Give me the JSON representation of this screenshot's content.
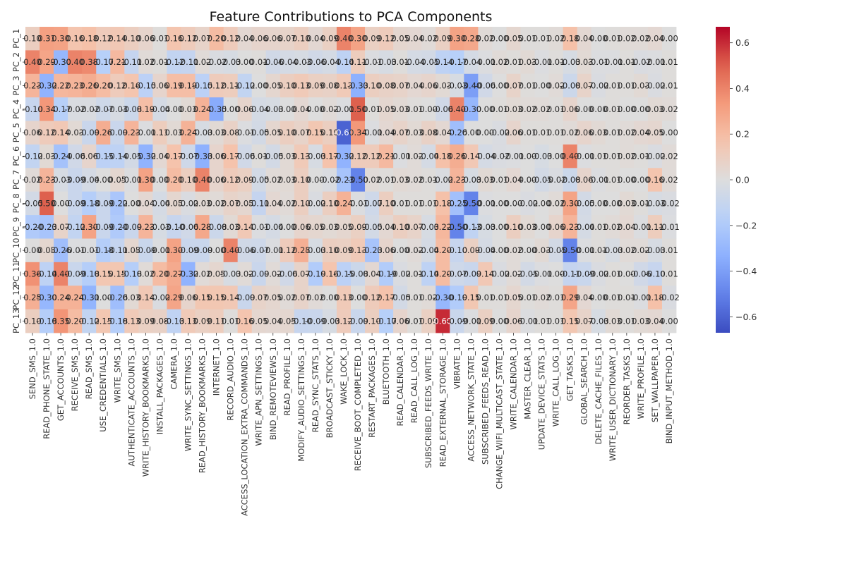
{
  "chart_data": {
    "type": "heatmap",
    "title": "Feature Contributions to PCA Components",
    "colormap": "coolwarm",
    "vmin": -0.67,
    "vmax": 0.67,
    "colorbar_ticks": [
      -0.6,
      -0.4,
      -0.2,
      0.0,
      0.2,
      0.4,
      0.6
    ],
    "colorbar_tick_labels": [
      "−0.6",
      "−0.4",
      "−0.2",
      "0.0",
      "0.2",
      "0.4",
      "0.6"
    ],
    "rows": [
      "PC_1",
      "PC_2",
      "PC_3",
      "PC_4",
      "PC_5",
      "PC_6",
      "PC_7",
      "PC_8",
      "PC_9",
      "PC_10",
      "PC_11",
      "PC_12",
      "PC_13"
    ],
    "columns": [
      "SEND_SMS_1.0",
      "READ_PHONE_STATE_1.0",
      "GET_ACCOUNTS_1.0",
      "RECEIVE_SMS_1.0",
      "READ_SMS_1.0",
      "USE_CREDENTIALS_1.0",
      "WRITE_SMS_1.0",
      "AUTHENTICATE_ACCOUNTS_1.0",
      "WRITE_HISTORY_BOOKMARKS_1.0",
      "INSTALL_PACKAGES_1.0",
      "CAMERA_1.0",
      "WRITE_SYNC_SETTINGS_1.0",
      "READ_HISTORY_BOOKMARKS_1.0",
      "INTERNET_1.0",
      "RECORD_AUDIO_1.0",
      "ACCESS_LOCATION_EXTRA_COMMANDS_1.0",
      "WRITE_APN_SETTINGS_1.0",
      "BIND_REMOTEVIEWS_1.0",
      "READ_PROFILE_1.0",
      "MODIFY_AUDIO_SETTINGS_1.0",
      "READ_SYNC_STATS_1.0",
      "BROADCAST_STICKY_1.0",
      "WAKE_LOCK_1.0",
      "RECEIVE_BOOT_COMPLETED_1.0",
      "RESTART_PACKAGES_1.0",
      "BLUETOOTH_1.0",
      "READ_CALENDAR_1.0",
      "READ_CALL_LOG_1.0",
      "SUBSCRIBED_FEEDS_WRITE_1.0",
      "READ_EXTERNAL_STORAGE_1.0",
      "VIBRATE_1.0",
      "ACCESS_NETWORK_STATE_1.0",
      "SUBSCRIBED_FEEDS_READ_1.0",
      "CHANGE_WIFI_MULTICAST_STATE_1.0",
      "WRITE_CALENDAR_1.0",
      "MASTER_CLEAR_1.0",
      "UPDATE_DEVICE_STATS_1.0",
      "WRITE_CALL_LOG_1.0",
      "GET_TASKS_1.0",
      "GLOBAL_SEARCH_1.0",
      "DELETE_CACHE_FILES_1.0",
      "WRITE_USER_DICTIONARY_1.0",
      "REORDER_TASKS_1.0",
      "WRITE_PROFILE_1.0",
      "SET_WALLPAPER_1.0",
      "BIND_INPUT_METHOD_1.0"
    ],
    "values": [
      [
        0.1,
        0.31,
        0.3,
        0.16,
        0.18,
        0.12,
        0.14,
        0.1,
        0.06,
        0.01,
        0.16,
        0.12,
        0.07,
        0.2,
        0.12,
        0.04,
        0.06,
        0.06,
        0.07,
        0.1,
        0.04,
        0.09,
        0.4,
        0.3,
        0.09,
        0.12,
        0.05,
        0.04,
        0.02,
        0.09,
        0.3,
        0.28,
        0.02,
        0.0,
        0.05,
        0.01,
        0.01,
        0.02,
        0.18,
        0.04,
        0.0,
        0.01,
        0.02,
        0.02,
        0.04,
        0.0
      ],
      [
        0.4,
        0.29,
        -0.3,
        0.4,
        0.38,
        -0.17,
        0.21,
        -0.11,
        0.02,
        0.01,
        -0.12,
        -0.11,
        0.02,
        -0.02,
        -0.03,
        0.0,
        0.01,
        -0.06,
        -0.04,
        -0.03,
        -0.06,
        -0.04,
        -0.14,
        0.11,
        -0.01,
        -0.03,
        0.01,
        -0.04,
        -0.05,
        -0.14,
        -0.17,
        -0.04,
        -0.01,
        0.02,
        0.01,
        0.03,
        -0.01,
        0.01,
        -0.03,
        0.03,
        -0.01,
        -0.01,
        0.01,
        -0.02,
        -0.01,
        0.01
      ],
      [
        0.23,
        -0.32,
        0.22,
        0.23,
        0.26,
        0.2,
        0.12,
        0.16,
        -0.15,
        0.06,
        0.19,
        0.19,
        -0.15,
        0.12,
        0.11,
        -0.12,
        -0.0,
        0.05,
        0.1,
        0.13,
        0.09,
        0.08,
        0.13,
        -0.33,
        0.1,
        0.08,
        0.07,
        0.04,
        0.06,
        0.03,
        -0.03,
        -0.4,
        -0.06,
        0.0,
        0.07,
        0.01,
        -0.0,
        0.02,
        -0.08,
        0.07,
        -0.02,
        0.01,
        0.01,
        0.03,
        -0.02,
        0.01
      ],
      [
        -0.1,
        0.34,
        -0.17,
        -0.02,
        -0.02,
        -0.07,
        -0.03,
        -0.08,
        0.19,
        -0.04,
        0.0,
        0.03,
        0.24,
        -0.35,
        0.0,
        0.06,
        -0.04,
        -0.03,
        0.0,
        0.04,
        -0.0,
        0.02,
        -0.01,
        0.5,
        0.01,
        0.05,
        0.03,
        0.01,
        -0.0,
        -0.06,
        0.4,
        -0.3,
        -0.0,
        0.01,
        0.03,
        0.02,
        0.02,
        0.01,
        0.06,
        0.0,
        0.0,
        0.01,
        0.0,
        -0.0,
        0.03,
        0.02
      ],
      [
        0.06,
        0.12,
        0.14,
        0.03,
        -0.09,
        0.26,
        -0.09,
        0.23,
        -0.01,
        0.11,
        0.03,
        0.24,
        -0.03,
        0.03,
        0.08,
        -0.01,
        -0.05,
        0.05,
        0.1,
        0.07,
        0.15,
        0.1,
        -0.6,
        0.34,
        -0.01,
        0.04,
        0.07,
        0.03,
        0.08,
        0.04,
        -0.26,
        0.0,
        0.0,
        -0.02,
        0.06,
        0.01,
        0.01,
        0.01,
        0.02,
        0.06,
        0.03,
        0.01,
        0.02,
        0.04,
        0.05,
        0.0
      ],
      [
        -0.12,
        0.03,
        -0.24,
        -0.06,
        0.06,
        -0.15,
        -0.14,
        -0.05,
        -0.32,
        0.04,
        0.17,
        -0.07,
        -0.33,
        0.06,
        0.17,
        -0.06,
        0.01,
        -0.05,
        0.03,
        0.13,
        -0.03,
        0.17,
        -0.32,
        0.12,
        0.12,
        0.21,
        -0.01,
        0.02,
        -0.04,
        0.18,
        0.26,
        0.14,
        -0.04,
        -0.02,
        -0.01,
        -0.0,
        -0.03,
        0.0,
        0.4,
        -0.01,
        0.01,
        0.01,
        0.02,
        0.01,
        -0.02,
        0.02
      ],
      [
        0.02,
        0.23,
        -0.03,
        -0.09,
        -0.04,
        -0.0,
        0.05,
        -0.01,
        0.3,
        0.0,
        0.2,
        0.1,
        0.4,
        0.06,
        0.12,
        0.09,
        -0.05,
        0.02,
        0.03,
        0.1,
        0.0,
        -0.02,
        -0.23,
        -0.5,
        0.02,
        0.01,
        0.03,
        0.02,
        0.01,
        -0.02,
        0.23,
        -0.03,
        0.03,
        0.01,
        0.04,
        -0.0,
        -0.05,
        -0.02,
        -0.08,
        0.06,
        -0.01,
        0.01,
        0.0,
        0.0,
        0.16,
        0.02
      ],
      [
        -0.05,
        0.5,
        -0.0,
        -0.09,
        -0.18,
        -0.09,
        -0.22,
        0.0,
        0.04,
        -0.04,
        0.05,
        -0.02,
        0.03,
        0.02,
        0.07,
        0.05,
        -0.11,
        0.04,
        0.02,
        0.1,
        -0.02,
        0.1,
        0.24,
        -0.01,
        -0.07,
        0.1,
        0.01,
        0.01,
        0.01,
        0.18,
        -0.25,
        -0.5,
        -0.01,
        0.0,
        0.0,
        -0.02,
        -0.0,
        0.02,
        0.3,
        -0.05,
        0.0,
        0.0,
        0.03,
        0.01,
        -0.03,
        -0.02
      ],
      [
        -0.2,
        -0.23,
        0.07,
        -0.12,
        0.3,
        -0.09,
        -0.2,
        -0.09,
        0.23,
        -0.03,
        -0.1,
        -0.06,
        0.28,
        -0.08,
        0.03,
        0.14,
        -0.01,
        -0.04,
        0.0,
        0.06,
        0.05,
        0.03,
        0.05,
        0.09,
        -0.05,
        0.04,
        0.1,
        0.07,
        -0.03,
        0.22,
        -0.5,
        -0.13,
        -0.03,
        0.0,
        0.1,
        0.03,
        0.0,
        0.06,
        0.23,
        -0.04,
        0.01,
        0.02,
        0.04,
        -0.01,
        0.11,
        -0.01
      ],
      [
        -0.0,
        0.05,
        -0.26,
        -0.01,
        -0.01,
        -0.18,
        -0.11,
        0.05,
        -0.09,
        -0.01,
        0.3,
        -0.09,
        -0.09,
        -0.0,
        0.4,
        -0.06,
        -0.07,
        -0.01,
        0.12,
        0.25,
        -0.03,
        0.1,
        0.09,
        0.13,
        -0.23,
        0.06,
        -0.0,
        0.02,
        -0.04,
        0.2,
        -0.1,
        0.09,
        -0.04,
        -0.0,
        0.02,
        0.0,
        0.03,
        -0.05,
        -0.5,
        -0.01,
        0.01,
        -0.03,
        0.02,
        0.02,
        -0.03,
        0.01
      ],
      [
        0.36,
        -0.14,
        0.4,
        -0.09,
        -0.18,
        0.15,
        0.15,
        -0.18,
        0.02,
        0.2,
        0.27,
        -0.32,
        0.02,
        0.05,
        -0.03,
        0.02,
        -0.09,
        0.02,
        -0.06,
        0.07,
        -0.19,
        0.16,
        -0.15,
        -0.08,
        0.04,
        -0.19,
        -0.02,
        0.01,
        -0.14,
        0.2,
        -0.07,
        -0.09,
        0.14,
        -0.02,
        0.02,
        -0.05,
        -0.01,
        0.0,
        -0.11,
        -0.09,
        -0.02,
        0.01,
        0.0,
        -0.06,
        -0.1,
        0.01
      ],
      [
        0.25,
        -0.3,
        0.24,
        0.24,
        -0.31,
        0.0,
        -0.26,
        0.03,
        0.14,
        -0.02,
        0.29,
        0.06,
        0.15,
        0.15,
        0.14,
        -0.09,
        0.07,
        0.05,
        0.02,
        0.07,
        0.02,
        0.0,
        0.13,
        0.0,
        0.12,
        0.17,
        -0.05,
        0.01,
        0.02,
        -0.3,
        -0.19,
        0.15,
        0.01,
        0.01,
        0.05,
        0.01,
        0.02,
        0.01,
        0.29,
        0.04,
        0.0,
        0.01,
        0.01,
        -0.01,
        0.18,
        -0.02
      ],
      [
        0.1,
        -0.18,
        0.35,
        0.2,
        -0.12,
        0.15,
        -0.18,
        0.13,
        0.09,
        0.08,
        -0.13,
        0.13,
        0.09,
        0.11,
        0.01,
        0.16,
        0.05,
        0.04,
        0.05,
        -0.1,
        -0.09,
        -0.03,
        0.12,
        -0.09,
        0.1,
        -0.17,
        0.06,
        0.01,
        0.09,
        0.6,
        -0.09,
        -0.01,
        0.09,
        -0.0,
        0.06,
        -0.01,
        0.01,
        0.01,
        0.15,
        0.07,
        -0.03,
        0.03,
        0.01,
        0.03,
        0.04,
        0.0
      ]
    ]
  }
}
